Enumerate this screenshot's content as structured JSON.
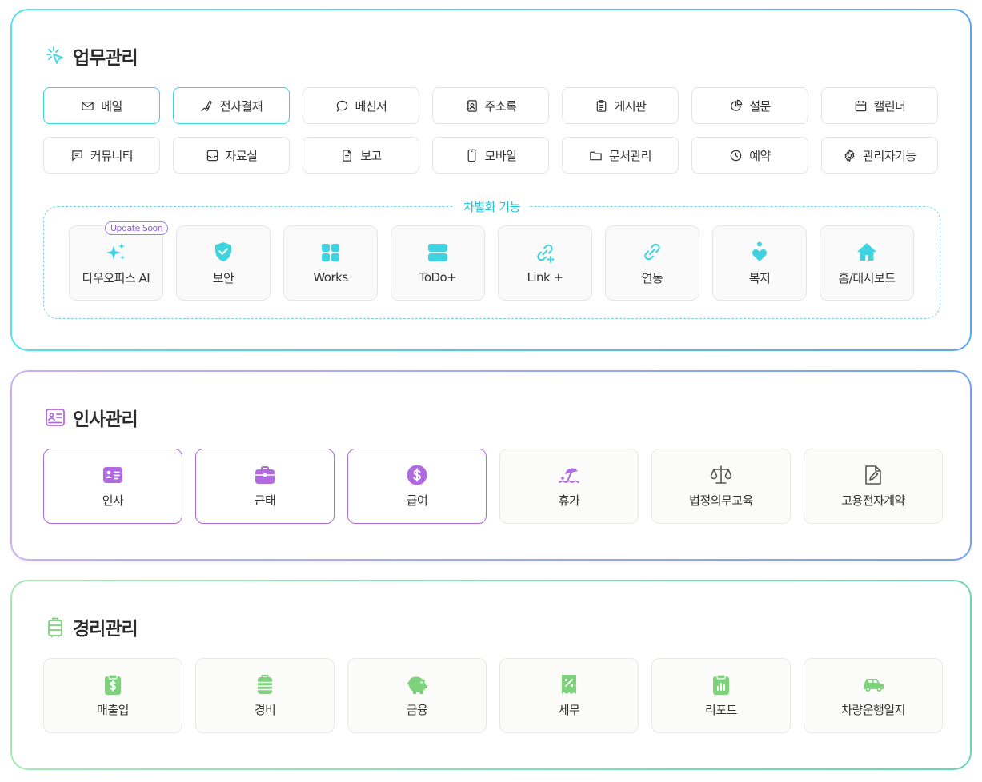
{
  "work": {
    "title": "업무관리",
    "row1": [
      "메일",
      "전자결재",
      "메신저",
      "주소록",
      "게시판",
      "설문",
      "캘린더"
    ],
    "row2": [
      "커뮤니티",
      "자료실",
      "보고",
      "모바일",
      "문서관리",
      "예약",
      "관리자기능"
    ],
    "diff_title": "차별화 기능",
    "badge": "Update Soon",
    "diff": [
      "다우오피스 AI",
      "보안",
      "Works",
      "ToDo+",
      "Link +",
      "연동",
      "복지",
      "홈/대시보드"
    ]
  },
  "hr": {
    "title": "인사관리",
    "items": [
      "인사",
      "근태",
      "급여",
      "휴가",
      "법정의무교육",
      "고용전자계약"
    ]
  },
  "finance": {
    "title": "경리관리",
    "items": [
      "매출입",
      "경비",
      "금융",
      "세무",
      "리포트",
      "차량운행일지"
    ]
  },
  "colors": {
    "cyan": "#3fd3df",
    "purple": "#b16be0",
    "green": "#7ed27c"
  }
}
